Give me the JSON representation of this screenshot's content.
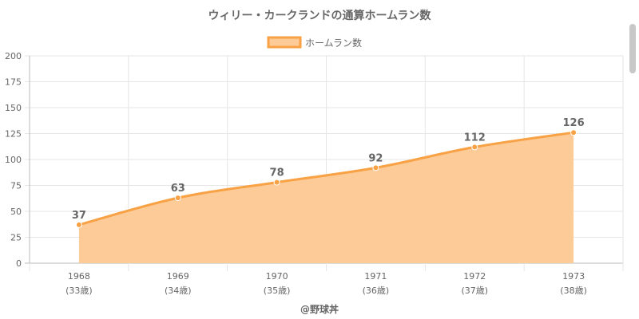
{
  "chart_data": {
    "type": "area",
    "title": "ウィリー・カークランドの通算ホームラン数",
    "legend": {
      "label": "ホームラン数",
      "position": "top"
    },
    "categories": [
      "1968",
      "1969",
      "1970",
      "1971",
      "1972",
      "1973"
    ],
    "sublabels": [
      "(33歳)",
      "(34歳)",
      "(35歳)",
      "(36歳)",
      "(37歳)",
      "(38歳)"
    ],
    "series": [
      {
        "name": "ホームラン数",
        "values": [
          37,
          63,
          78,
          92,
          112,
          126
        ]
      }
    ],
    "ylim": [
      0,
      200
    ],
    "yticks": [
      "0",
      "25",
      "50",
      "75",
      "100",
      "125",
      "150",
      "175",
      "200"
    ],
    "grid": true,
    "colors": {
      "line": "#f8a145",
      "fill": "#fdcb97",
      "text": "#666666",
      "grid": "#e6e6e6"
    }
  },
  "footer": {
    "credit": "@野球丼"
  }
}
